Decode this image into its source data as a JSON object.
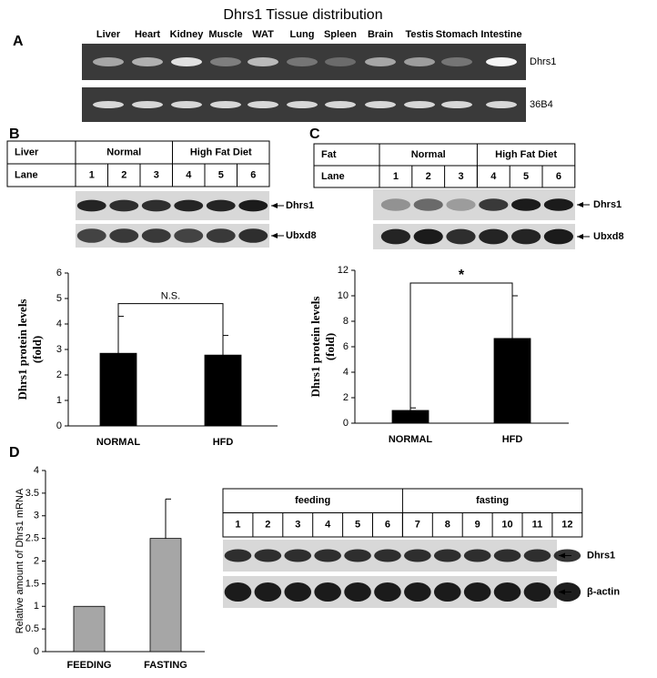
{
  "title": "Dhrs1 Tissue distribution",
  "panel_a": {
    "letter": "A",
    "tissues": [
      "Liver",
      "Heart",
      "Kidney",
      "Muscle",
      "WAT",
      "Lung",
      "Spleen",
      "Brain",
      "Testis",
      "Stomach",
      "Intestine"
    ],
    "bands": [
      "Dhrs1",
      "36B4"
    ]
  },
  "panel_b": {
    "letter": "B",
    "table": {
      "header": [
        "Liver",
        "Normal",
        "High Fat Diet"
      ],
      "lane_label": "Lane",
      "lanes": [
        "1",
        "2",
        "3",
        "4",
        "5",
        "6"
      ]
    },
    "bands": [
      "Dhrs1",
      "Ubxd8"
    ]
  },
  "panel_c": {
    "letter": "C",
    "table": {
      "header": [
        "Fat",
        "Normal",
        "High Fat Diet"
      ],
      "lane_label": "Lane",
      "lanes": [
        "1",
        "2",
        "3",
        "4",
        "5",
        "6"
      ]
    },
    "bands": [
      "Dhrs1",
      "Ubxd8"
    ]
  },
  "panel_d": {
    "letter": "D",
    "table": {
      "header": [
        "feeding",
        "fasting"
      ],
      "lanes": [
        "1",
        "2",
        "3",
        "4",
        "5",
        "6",
        "7",
        "8",
        "9",
        "10",
        "11",
        "12"
      ]
    },
    "bands": [
      "Dhrs1",
      "β-actin"
    ]
  },
  "chart_data": [
    {
      "type": "bar",
      "y_label": [
        "Dhrs1  protein levels",
        "(fold)"
      ],
      "categories": [
        "NORMAL",
        "HFD"
      ],
      "values": [
        2.85,
        2.78
      ],
      "errors": [
        1.45,
        0.77
      ],
      "color": "#000000",
      "ylim": [
        0,
        6
      ],
      "yticks": [
        0,
        1,
        2,
        3,
        4,
        5,
        6
      ],
      "annotation": "N.S."
    },
    {
      "type": "bar",
      "y_label": [
        "Dhrs1  protein levels",
        "(fold)"
      ],
      "categories": [
        "NORMAL",
        "HFD"
      ],
      "values": [
        1.0,
        6.65
      ],
      "errors": [
        0.2,
        3.35
      ],
      "color": "#000000",
      "ylim": [
        0,
        12
      ],
      "yticks": [
        0,
        2,
        4,
        6,
        8,
        10,
        12
      ],
      "annotation": "*"
    },
    {
      "type": "bar",
      "y_label": [
        "Relative amount of Dhrs1 mRNA"
      ],
      "categories": [
        "FEEDING",
        "FASTING"
      ],
      "values": [
        1,
        2.5
      ],
      "errors": [
        null,
        0.87
      ],
      "color": "#a6a6a6",
      "ylim": [
        0,
        4
      ],
      "yticks": [
        0,
        0.5,
        1,
        1.5,
        2,
        2.5,
        3,
        3.5,
        4
      ]
    }
  ]
}
